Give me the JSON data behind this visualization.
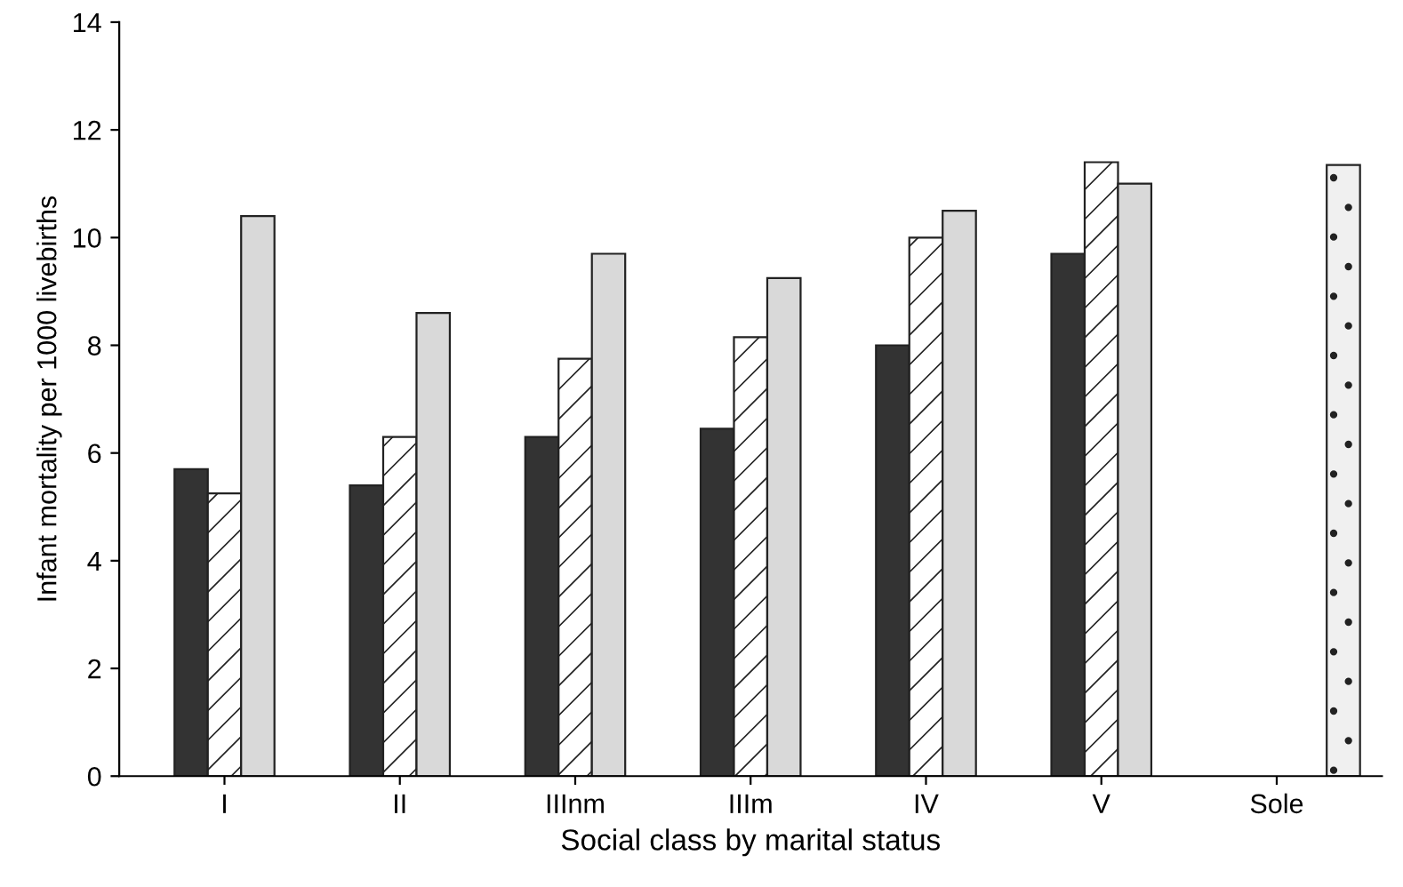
{
  "chart_data": {
    "type": "bar",
    "xlabel": "Social class by marital status",
    "ylabel": "Infant mortality per 1000 livebirths",
    "categories": [
      "I",
      "II",
      "IIInm",
      "IIIm",
      "IV",
      "V",
      "Sole"
    ],
    "series": [
      {
        "color": "#333333",
        "values": [
          5.7,
          5.4,
          6.3,
          6.45,
          8.0,
          9.7,
          null
        ]
      },
      {
        "color": "#ffffff",
        "values": [
          5.25,
          6.3,
          7.75,
          8.15,
          10.0,
          11.4,
          null
        ]
      },
      {
        "color": "#d9d9d9",
        "values": [
          10.4,
          8.6,
          9.7,
          9.25,
          10.5,
          11.0,
          null
        ]
      },
      {
        "color": "#f0f0f0",
        "values": [
          null,
          null,
          null,
          null,
          null,
          null,
          11.35
        ]
      }
    ],
    "ylim": [
      0,
      14
    ],
    "yticks": [
      0,
      2,
      4,
      6,
      8,
      10,
      12,
      14
    ],
    "grid": false,
    "legend": false
  }
}
